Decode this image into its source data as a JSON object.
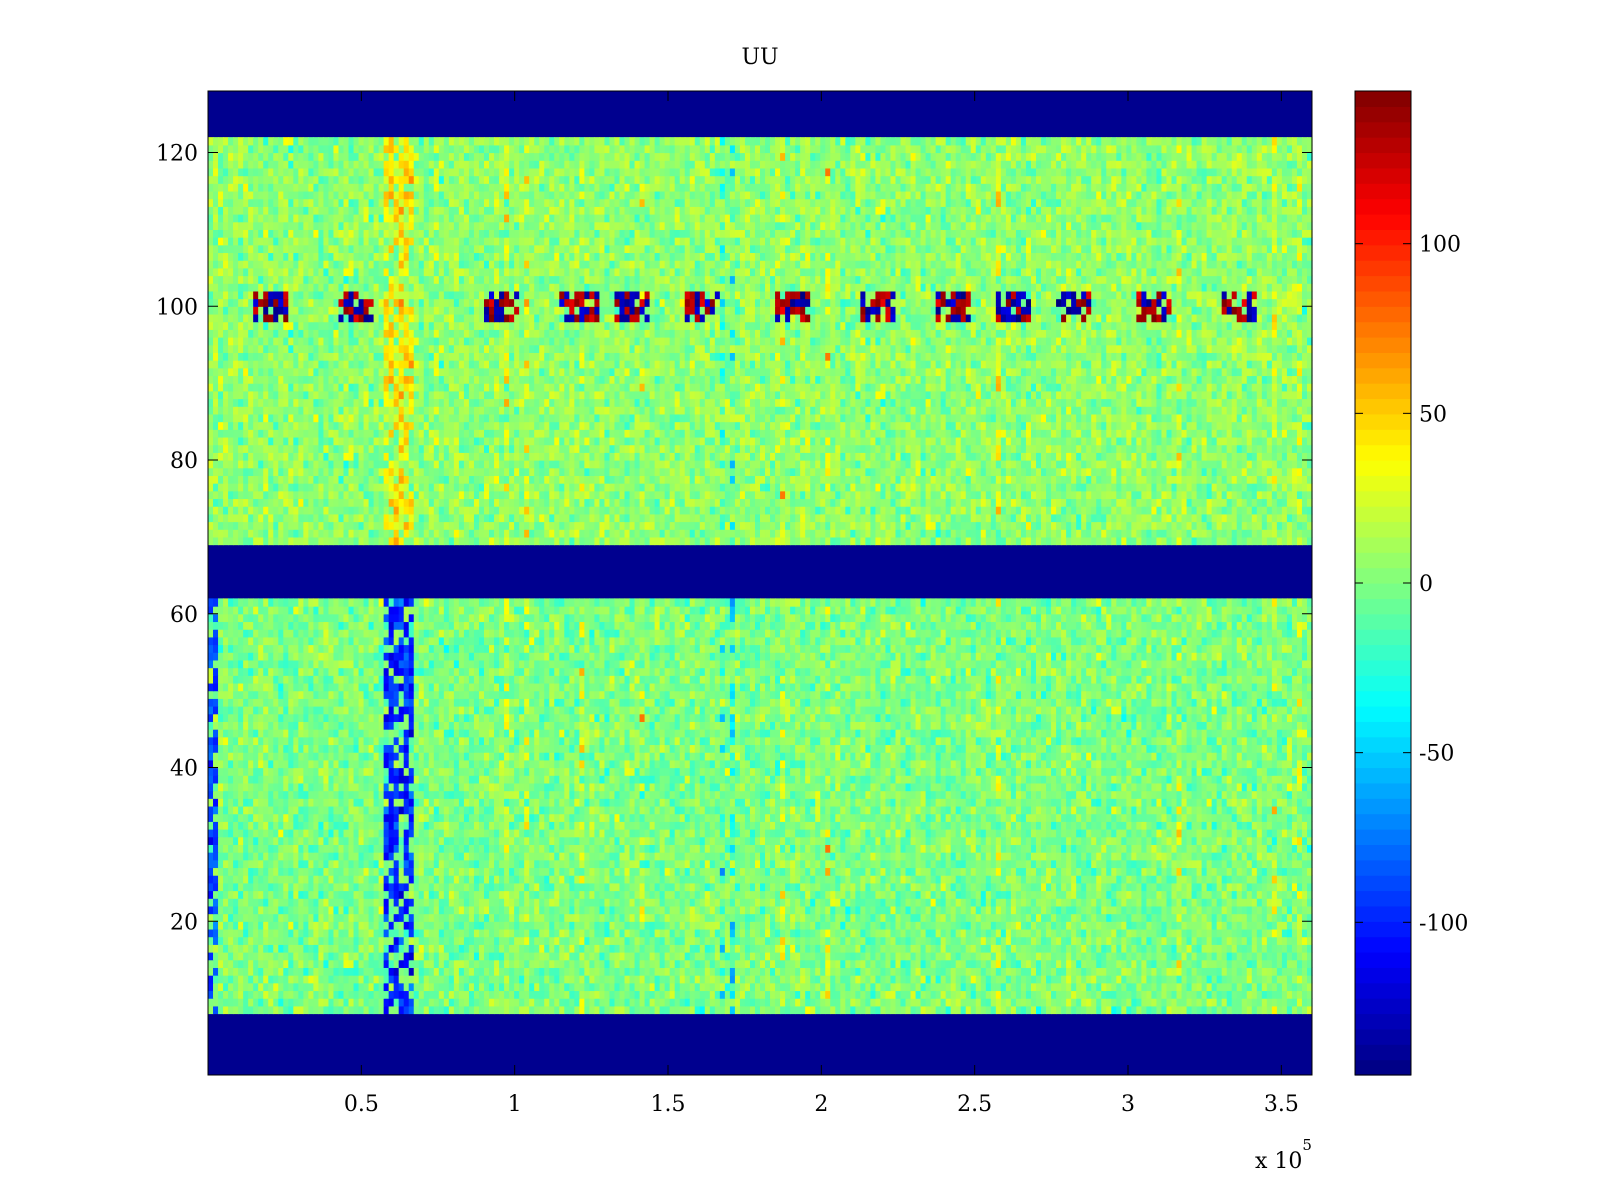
{
  "chart_data": {
    "type": "heatmap",
    "title": "UU",
    "xlabel": "",
    "ylabel": "",
    "x_range": [
      0,
      360000
    ],
    "y_range": [
      0,
      128
    ],
    "x_ticks": [
      50000,
      100000,
      150000,
      200000,
      250000,
      300000,
      350000
    ],
    "x_tick_labels": [
      "0.5",
      "1",
      "1.5",
      "2",
      "2.5",
      "3",
      "3.5"
    ],
    "x_multiplier_label": "x 10",
    "x_multiplier_exponent": "5",
    "y_ticks": [
      20,
      40,
      60,
      80,
      100,
      120
    ],
    "y_tick_labels": [
      "20",
      "40",
      "60",
      "80",
      "100",
      "120"
    ],
    "colormap": "jet",
    "color_range": [
      -145,
      145
    ],
    "colorbar_ticks": [
      -100,
      -50,
      0,
      50,
      100
    ],
    "colorbar_tick_labels": [
      "-100",
      "-50",
      "0",
      "50",
      "100"
    ],
    "background_value": -145,
    "data_bands": [
      {
        "y_from": 8,
        "y_to": 62,
        "typical_value": 0
      },
      {
        "y_from": 69,
        "y_to": 122,
        "typical_value": 5
      }
    ],
    "empty_bands": [
      {
        "y_from": 0,
        "y_to": 8
      },
      {
        "y_from": 62,
        "y_to": 69
      },
      {
        "y_from": 122,
        "y_to": 128
      }
    ],
    "features": [
      {
        "y_from": 98,
        "y_to": 102,
        "description": "intermittent extreme-value stripe",
        "x_centers": [
          20000,
          47000,
          95000,
          120000,
          138000,
          160000,
          190000,
          218000,
          242000,
          262000,
          282000,
          308000,
          335000
        ]
      },
      {
        "x_from": 57000,
        "x_to": 67000,
        "y_from": 8,
        "y_to": 62,
        "value": -100
      },
      {
        "x_from": 57000,
        "x_to": 67000,
        "y_from": 69,
        "y_to": 122,
        "value": 45
      },
      {
        "x_from": 0,
        "x_to": 3000,
        "y_from": 8,
        "y_to": 62,
        "value": -90
      }
    ],
    "grid": false
  },
  "colors": {
    "background": "#ffffff",
    "axes": "#000000",
    "empty_band": "#00008f"
  }
}
